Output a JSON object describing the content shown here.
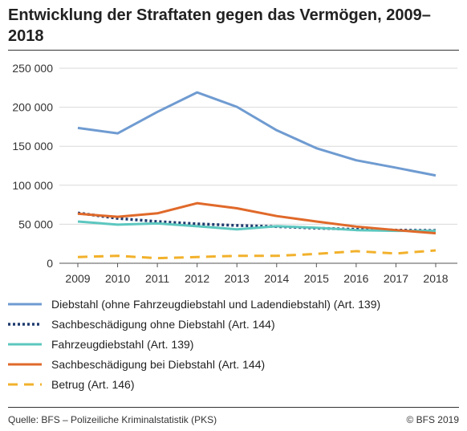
{
  "title": "Entwicklung der Straftaten gegen das Vermögen, 2009–2018",
  "source": "Quelle: BFS – Polizeiliche Kriminalstatistik (PKS)",
  "copyright": "© BFS 2019",
  "chart_data": {
    "type": "line",
    "title": "Entwicklung der Straftaten gegen das Vermögen, 2009–2018",
    "xlabel": "",
    "ylabel": "",
    "x": [
      2009,
      2010,
      2011,
      2012,
      2013,
      2014,
      2015,
      2016,
      2017,
      2018
    ],
    "ylim": [
      0,
      250000
    ],
    "yticks": [
      0,
      50000,
      100000,
      150000,
      200000,
      250000
    ],
    "ytick_labels": [
      "0",
      "50 000",
      "100 000",
      "150 000",
      "200 000",
      "250 000"
    ],
    "grid": true,
    "legend_position": "bottom",
    "series": [
      {
        "name": "Diebstahl (ohne Fahrzeugdiebstahl und Ladendiebstahl) (Art. 139)",
        "color": "#6f9bd1",
        "style": "solid",
        "values": [
          173500,
          166500,
          194000,
          219000,
          200500,
          170500,
          147500,
          132000,
          122500,
          112500
        ]
      },
      {
        "name": "Sachbeschädigung ohne Diebstahl (Art. 144)",
        "color": "#1f3a6e",
        "style": "dotted",
        "values": [
          64500,
          57500,
          53500,
          50500,
          48500,
          47000,
          45000,
          43500,
          42500,
          42000
        ]
      },
      {
        "name": "Fahrzeugdiebstahl (Art. 139)",
        "color": "#5cc7bf",
        "style": "solid",
        "values": [
          53500,
          49500,
          51000,
          47500,
          43500,
          47500,
          45500,
          42500,
          41500,
          41500
        ]
      },
      {
        "name": "Sachbeschädigung bei Diebstahl (Art. 144)",
        "color": "#e0692a",
        "style": "solid",
        "values": [
          63500,
          59500,
          64000,
          77000,
          70500,
          60500,
          53500,
          47000,
          42500,
          38500
        ]
      },
      {
        "name": "Betrug (Art. 146)",
        "color": "#f2b12b",
        "style": "dashed",
        "values": [
          8000,
          9500,
          6500,
          8000,
          9500,
          9500,
          12000,
          15500,
          12500,
          16500
        ]
      }
    ]
  }
}
